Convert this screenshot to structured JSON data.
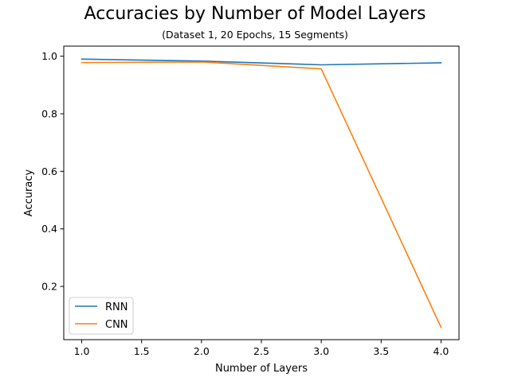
{
  "chart_data": {
    "type": "line",
    "title": "Accuracies by Number of Model Layers",
    "subtitle": "(Dataset 1, 20 Epochs, 15 Segments)",
    "xlabel": "Number of Layers",
    "ylabel": "Accuracy",
    "x": [
      1,
      2,
      3,
      4
    ],
    "xlim": [
      0.85,
      4.15
    ],
    "ylim": [
      0.015,
      1.035
    ],
    "xticks": [
      "1.0",
      "1.5",
      "2.0",
      "2.5",
      "3.0",
      "3.5",
      "4.0"
    ],
    "yticks": [
      "0.2",
      "0.4",
      "0.6",
      "0.8",
      "1.0"
    ],
    "grid": false,
    "legend_position": "lower-left",
    "series": [
      {
        "name": "RNN",
        "color": "#1f77b4",
        "values": [
          0.99,
          0.983,
          0.97,
          0.977
        ]
      },
      {
        "name": "CNN",
        "color": "#ff7f0e",
        "values": [
          0.978,
          0.98,
          0.956,
          0.058
        ]
      }
    ]
  }
}
